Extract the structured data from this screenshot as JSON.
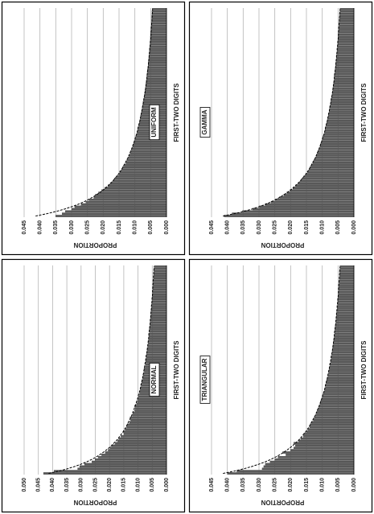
{
  "chart_data": [
    {
      "type": "bar",
      "title": "UNIFORM",
      "xlabel": "FIRST-TWO DIGITS",
      "ylabel": "PROPORTION",
      "grid": true,
      "ylim": [
        0,
        0.045
      ],
      "yticks": [
        {
          "value": 0,
          "label": "0.000"
        },
        0.005,
        {
          "value": 0.01,
          "label": "0.010"
        },
        0.015,
        {
          "value": 0.02,
          "label": "0.020"
        },
        0.025,
        {
          "value": 0.03,
          "label": "0.030"
        },
        0.035,
        {
          "value": 0.04,
          "label": "0.040"
        },
        0.045
      ],
      "series": [
        {
          "type": "bar",
          "color": "#5a5a5a",
          "values": [
            0.035,
            0.033,
            0.032,
            0.03,
            0.029,
            0.027,
            0.0255,
            0.0245,
            0.023,
            0.0225,
            0.0215,
            0.0205,
            0.0195,
            0.0185,
            0.0178,
            0.017,
            0.0165,
            0.0158,
            0.015,
            0.0148,
            0.0142,
            0.0138,
            0.0133,
            0.0128,
            0.0125,
            0.0122,
            0.0118,
            0.0115,
            0.0112,
            0.0109,
            0.0107,
            0.0104,
            0.0102,
            0.01,
            0.0097,
            0.0095,
            0.0093,
            0.0091,
            0.009,
            0.0088,
            0.0086,
            0.0085,
            0.0083,
            0.0082,
            0.008,
            0.0079,
            0.0077,
            0.0076,
            0.0075,
            0.0074,
            0.0072,
            0.0071,
            0.007,
            0.0069,
            0.0068,
            0.0067,
            0.0066,
            0.0065,
            0.0064,
            0.0063,
            0.0062,
            0.0061,
            0.0061,
            0.006,
            0.0059,
            0.0058,
            0.0058,
            0.0057,
            0.0056,
            0.0055,
            0.0055,
            0.0054,
            0.0054,
            0.0053,
            0.0052,
            0.0052,
            0.0051,
            0.0051,
            0.005,
            0.005,
            0.0049,
            0.0049,
            0.0048,
            0.0048,
            0.0047,
            0.0047,
            0.0047,
            0.0046,
            0.0046,
            0.0045
          ]
        },
        {
          "type": "line",
          "color": "#000000",
          "values": [
            0.0414,
            0.0378,
            0.0348,
            0.0322,
            0.03,
            0.028,
            0.0263,
            0.0248,
            0.0235,
            0.0223,
            0.0212,
            0.0202,
            0.0193,
            0.0185,
            0.0177,
            0.017,
            0.0164,
            0.0158,
            0.0152,
            0.0147,
            0.0142,
            0.0138,
            0.0134,
            0.013,
            0.0126,
            0.0122,
            0.0119,
            0.0116,
            0.0113,
            0.011,
            0.0107,
            0.0105,
            0.0102,
            0.01,
            0.0098,
            0.0095,
            0.0093,
            0.0091,
            0.009,
            0.0088,
            0.0086,
            0.0084,
            0.0083,
            0.0081,
            0.008,
            0.0078,
            0.0077,
            0.0076,
            0.0074,
            0.0073,
            0.0072,
            0.0071,
            0.0069,
            0.0068,
            0.0067,
            0.0066,
            0.0065,
            0.0064,
            0.0063,
            0.0062,
            0.0062,
            0.0061,
            0.006,
            0.0059,
            0.0058,
            0.0057,
            0.0057,
            0.0056,
            0.0055,
            0.0055,
            0.0054,
            0.0053,
            0.0053,
            0.0052,
            0.0051,
            0.0051,
            0.005,
            0.0049,
            0.0049,
            0.0049,
            0.0048,
            0.0048,
            0.0047,
            0.0047,
            0.0046,
            0.0046,
            0.0045,
            0.0045,
            0.0044,
            0.0044
          ]
        }
      ]
    },
    {
      "type": "bar",
      "title": "GAMMA",
      "xlabel": "FIRST-TWO DIGITS",
      "ylabel": "PROPORTION",
      "grid": true,
      "ylim": [
        0,
        0.045
      ],
      "yticks": [
        {
          "value": 0,
          "label": "0.000"
        },
        0.005,
        {
          "value": 0.01,
          "label": "0.010"
        },
        0.015,
        {
          "value": 0.02,
          "label": "0.020"
        },
        0.025,
        {
          "value": 0.03,
          "label": "0.030"
        },
        0.035,
        {
          "value": 0.04,
          "label": "0.040"
        },
        0.045
      ],
      "series": [
        {
          "type": "bar",
          "color": "#5a5a5a",
          "values": [
            0.041,
            0.0385,
            0.0352,
            0.032,
            0.0298,
            0.028,
            0.0262,
            0.0248,
            0.0235,
            0.0222,
            0.0212,
            0.0202,
            0.0193,
            0.0185,
            0.0177,
            0.017,
            0.0164,
            0.0158,
            0.0152,
            0.0147,
            0.0142,
            0.0138,
            0.0134,
            0.013,
            0.0126,
            0.0122,
            0.0119,
            0.0116,
            0.0113,
            0.011,
            0.0107,
            0.0105,
            0.0102,
            0.01,
            0.0098,
            0.0095,
            0.0093,
            0.0091,
            0.009,
            0.0088,
            0.0086,
            0.0084,
            0.0083,
            0.0081,
            0.008,
            0.0078,
            0.0077,
            0.0075,
            0.0074,
            0.0073,
            0.0072,
            0.0071,
            0.0069,
            0.0068,
            0.0067,
            0.0066,
            0.0065,
            0.0064,
            0.0063,
            0.0062,
            0.0062,
            0.0061,
            0.006,
            0.0059,
            0.0058,
            0.0058,
            0.0057,
            0.0056,
            0.0055,
            0.0055,
            0.0054,
            0.0053,
            0.0053,
            0.0052,
            0.0051,
            0.0051,
            0.005,
            0.005,
            0.0049,
            0.0049,
            0.0048,
            0.0048,
            0.0047,
            0.0047,
            0.0046,
            0.0046,
            0.0045,
            0.0045,
            0.0044,
            0.0044
          ]
        },
        {
          "type": "line",
          "color": "#000000",
          "values": [
            0.0414,
            0.0378,
            0.0348,
            0.0322,
            0.03,
            0.028,
            0.0263,
            0.0248,
            0.0235,
            0.0223,
            0.0212,
            0.0202,
            0.0193,
            0.0185,
            0.0177,
            0.017,
            0.0164,
            0.0158,
            0.0152,
            0.0147,
            0.0142,
            0.0138,
            0.0134,
            0.013,
            0.0126,
            0.0122,
            0.0119,
            0.0116,
            0.0113,
            0.011,
            0.0107,
            0.0105,
            0.0102,
            0.01,
            0.0098,
            0.0095,
            0.0093,
            0.0091,
            0.009,
            0.0088,
            0.0086,
            0.0084,
            0.0083,
            0.0081,
            0.008,
            0.0078,
            0.0077,
            0.0076,
            0.0074,
            0.0073,
            0.0072,
            0.0071,
            0.0069,
            0.0068,
            0.0067,
            0.0066,
            0.0065,
            0.0064,
            0.0063,
            0.0062,
            0.0062,
            0.0061,
            0.006,
            0.0059,
            0.0058,
            0.0057,
            0.0057,
            0.0056,
            0.0055,
            0.0055,
            0.0054,
            0.0053,
            0.0053,
            0.0052,
            0.0051,
            0.0051,
            0.005,
            0.0049,
            0.0049,
            0.0049,
            0.0048,
            0.0048,
            0.0047,
            0.0047,
            0.0046,
            0.0046,
            0.0045,
            0.0045,
            0.0044,
            0.0044
          ]
        }
      ]
    },
    {
      "type": "bar",
      "title": "NORMAL",
      "xlabel": "FIRST-TWO DIGITS",
      "ylabel": "PROPORTION",
      "grid": true,
      "ylim": [
        0,
        0.05
      ],
      "yticks": [
        {
          "value": 0,
          "label": "0.000"
        },
        0.005,
        {
          "value": 0.01,
          "label": "0.010"
        },
        0.015,
        {
          "value": 0.02,
          "label": "0.020"
        },
        0.025,
        {
          "value": 0.03,
          "label": "0.030"
        },
        0.035,
        {
          "value": 0.04,
          "label": "0.040"
        },
        0.045,
        {
          "value": 0.05,
          "label": "0.050"
        }
      ],
      "series": [
        {
          "type": "bar",
          "color": "#5a5a5a",
          "values": [
            0.0432,
            0.0395,
            0.0312,
            0.0305,
            0.0288,
            0.0262,
            0.0251,
            0.024,
            0.0228,
            0.0215,
            0.0205,
            0.0198,
            0.0192,
            0.018,
            0.0172,
            0.0168,
            0.016,
            0.015,
            0.0152,
            0.0145,
            0.014,
            0.0138,
            0.013,
            0.0126,
            0.0128,
            0.012,
            0.0118,
            0.0112,
            0.011,
            0.0112,
            0.0105,
            0.0102,
            0.01,
            0.0098,
            0.0095,
            0.0094,
            0.0092,
            0.009,
            0.0088,
            0.0087,
            0.0086,
            0.0083,
            0.0082,
            0.008,
            0.0078,
            0.0079,
            0.0075,
            0.0074,
            0.0073,
            0.0072,
            0.0071,
            0.007,
            0.0069,
            0.0068,
            0.0066,
            0.0066,
            0.0064,
            0.0063,
            0.0063,
            0.0062,
            0.0061,
            0.006,
            0.006,
            0.0059,
            0.0058,
            0.0057,
            0.0056,
            0.0056,
            0.0055,
            0.0054,
            0.0054,
            0.0053,
            0.0052,
            0.0052,
            0.0051,
            0.005,
            0.005,
            0.0049,
            0.0049,
            0.0048,
            0.0048,
            0.0047,
            0.0047,
            0.0046,
            0.0046,
            0.0045,
            0.0045,
            0.0044,
            0.0044,
            0.0043
          ]
        },
        {
          "type": "line",
          "color": "#000000",
          "values": [
            0.0414,
            0.0378,
            0.0348,
            0.0322,
            0.03,
            0.028,
            0.0263,
            0.0248,
            0.0235,
            0.0223,
            0.0212,
            0.0202,
            0.0193,
            0.0185,
            0.0177,
            0.017,
            0.0164,
            0.0158,
            0.0152,
            0.0147,
            0.0142,
            0.0138,
            0.0134,
            0.013,
            0.0126,
            0.0122,
            0.0119,
            0.0116,
            0.0113,
            0.011,
            0.0107,
            0.0105,
            0.0102,
            0.01,
            0.0098,
            0.0095,
            0.0093,
            0.0091,
            0.009,
            0.0088,
            0.0086,
            0.0084,
            0.0083,
            0.0081,
            0.008,
            0.0078,
            0.0077,
            0.0076,
            0.0074,
            0.0073,
            0.0072,
            0.0071,
            0.0069,
            0.0068,
            0.0067,
            0.0066,
            0.0065,
            0.0064,
            0.0063,
            0.0062,
            0.0062,
            0.0061,
            0.006,
            0.0059,
            0.0058,
            0.0057,
            0.0057,
            0.0056,
            0.0055,
            0.0055,
            0.0054,
            0.0053,
            0.0053,
            0.0052,
            0.0051,
            0.0051,
            0.005,
            0.0049,
            0.0049,
            0.0049,
            0.0048,
            0.0048,
            0.0047,
            0.0047,
            0.0046,
            0.0046,
            0.0045,
            0.0045,
            0.0044,
            0.0044
          ]
        }
      ]
    },
    {
      "type": "bar",
      "title": "TRIANGULAR",
      "xlabel": "FIRST-TWO DIGITS",
      "ylabel": "PROPORTION",
      "grid": true,
      "ylim": [
        0,
        0.045
      ],
      "yticks": [
        {
          "value": 0,
          "label": "0.000"
        },
        0.005,
        {
          "value": 0.01,
          "label": "0.010"
        },
        0.015,
        {
          "value": 0.02,
          "label": "0.020"
        },
        0.025,
        {
          "value": 0.03,
          "label": "0.030"
        },
        0.035,
        {
          "value": 0.04,
          "label": "0.040"
        },
        0.045
      ],
      "series": [
        {
          "type": "bar",
          "color": "#5a5a5a",
          "values": [
            0.04,
            0.037,
            0.029,
            0.0285,
            0.028,
            0.0265,
            0.025,
            0.024,
            0.0215,
            0.0225,
            0.02,
            0.019,
            0.0185,
            0.019,
            0.0175,
            0.0168,
            0.016,
            0.0158,
            0.015,
            0.0145,
            0.014,
            0.0138,
            0.0133,
            0.0128,
            0.0125,
            0.0121,
            0.0118,
            0.0116,
            0.0112,
            0.011,
            0.0107,
            0.0105,
            0.0101,
            0.01,
            0.0097,
            0.0095,
            0.0093,
            0.009,
            0.0089,
            0.0088,
            0.0086,
            0.0084,
            0.0082,
            0.008,
            0.0079,
            0.0078,
            0.0076,
            0.0075,
            0.0073,
            0.0072,
            0.0071,
            0.007,
            0.0069,
            0.0068,
            0.0067,
            0.0066,
            0.0065,
            0.0064,
            0.0063,
            0.0062,
            0.0061,
            0.006,
            0.006,
            0.0059,
            0.0058,
            0.0057,
            0.0056,
            0.0055,
            0.0055,
            0.0054,
            0.0054,
            0.0053,
            0.0052,
            0.0052,
            0.0051,
            0.0051,
            0.005,
            0.0049,
            0.0049,
            0.0048,
            0.0048,
            0.0047,
            0.0047,
            0.0046,
            0.0046,
            0.0045,
            0.0045,
            0.0045,
            0.0044,
            0.0044
          ]
        },
        {
          "type": "line",
          "color": "#000000",
          "values": [
            0.0414,
            0.0378,
            0.0348,
            0.0322,
            0.03,
            0.028,
            0.0263,
            0.0248,
            0.0235,
            0.0223,
            0.0212,
            0.0202,
            0.0193,
            0.0185,
            0.0177,
            0.017,
            0.0164,
            0.0158,
            0.0152,
            0.0147,
            0.0142,
            0.0138,
            0.0134,
            0.013,
            0.0126,
            0.0122,
            0.0119,
            0.0116,
            0.0113,
            0.011,
            0.0107,
            0.0105,
            0.0102,
            0.01,
            0.0098,
            0.0095,
            0.0093,
            0.0091,
            0.009,
            0.0088,
            0.0086,
            0.0084,
            0.0083,
            0.0081,
            0.008,
            0.0078,
            0.0077,
            0.0076,
            0.0074,
            0.0073,
            0.0072,
            0.0071,
            0.0069,
            0.0068,
            0.0067,
            0.0066,
            0.0065,
            0.0064,
            0.0063,
            0.0062,
            0.0062,
            0.0061,
            0.006,
            0.0059,
            0.0058,
            0.0057,
            0.0057,
            0.0056,
            0.0055,
            0.0055,
            0.0054,
            0.0053,
            0.0053,
            0.0052,
            0.0051,
            0.0051,
            0.005,
            0.0049,
            0.0049,
            0.0049,
            0.0048,
            0.0048,
            0.0047,
            0.0047,
            0.0046,
            0.0046,
            0.0045,
            0.0045,
            0.0044,
            0.0044
          ]
        }
      ]
    }
  ]
}
